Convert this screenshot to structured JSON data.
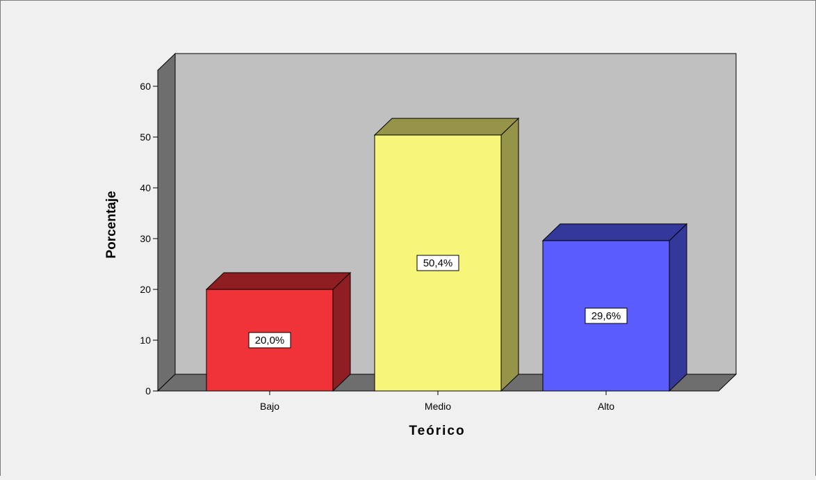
{
  "chart_data": {
    "type": "bar",
    "title": "",
    "xlabel": "Teórico",
    "ylabel": "Porcentaje",
    "categories": [
      "Bajo",
      "Medio",
      "Alto"
    ],
    "values": [
      20.0,
      50.4,
      29.6
    ],
    "data_labels": [
      "20,0%",
      "50,4%",
      "29,6%"
    ],
    "ylim": [
      0,
      60
    ],
    "yticks": [
      0,
      10,
      20,
      30,
      40,
      50,
      60
    ],
    "grid": false,
    "style": "3d",
    "colors": {
      "front": [
        "#f03338",
        "#f8f67a",
        "#5a5cfe"
      ],
      "side": [
        "#8e1e22",
        "#969448",
        "#33389a"
      ],
      "wall": "#c0c0c0",
      "wall_side": "#6e6e6e",
      "floor": "#6e6e6e",
      "background": "#f0f0f0"
    }
  }
}
